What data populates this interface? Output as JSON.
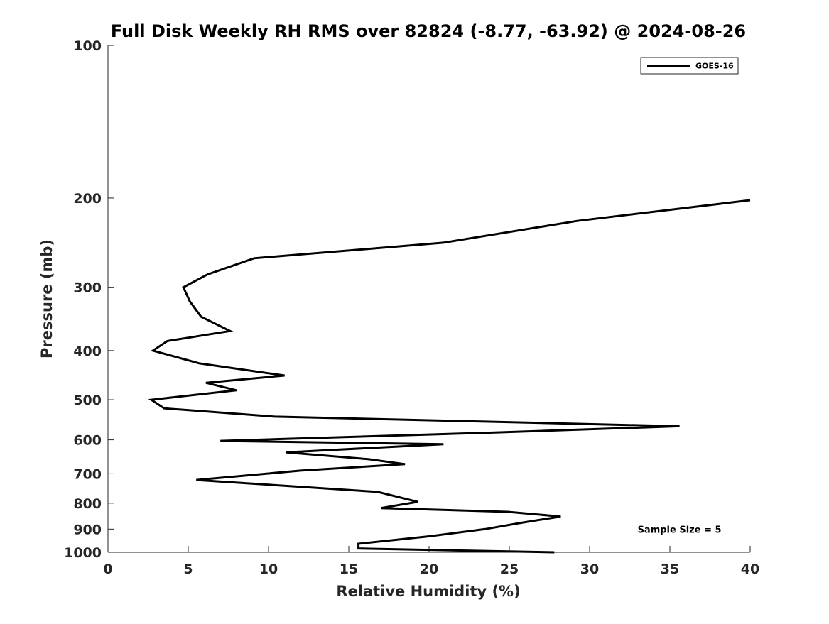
{
  "chart_data": {
    "type": "line",
    "title": "Full Disk Weekly RH RMS over 82824 (-8.77, -63.92) @ 2024-08-26",
    "xlabel": "Relative Humidity (%)",
    "ylabel": "Pressure (mb)",
    "xlim": [
      0,
      40
    ],
    "ylim": [
      100,
      1000
    ],
    "y_scale": "log",
    "y_reversed": true,
    "x_ticks": [
      0,
      5,
      10,
      15,
      20,
      25,
      30,
      35,
      40
    ],
    "y_ticks": [
      100,
      200,
      300,
      400,
      500,
      600,
      700,
      800,
      900,
      1000
    ],
    "grid": false,
    "legend_position": "top-right",
    "series": [
      {
        "name": "GOES-16",
        "color": "#000000",
        "x": [
          40.0,
          29.2,
          20.9,
          9.1,
          6.2,
          4.7,
          5.1,
          5.8,
          7.6,
          3.7,
          2.8,
          5.7,
          11.0,
          6.1,
          8.0,
          2.7,
          3.5,
          10.4,
          35.6,
          23.6,
          7.0,
          20.9,
          11.1,
          16.2,
          18.5,
          12.0,
          5.5,
          16.8,
          19.3,
          17.0,
          24.9,
          28.2,
          25.7,
          23.5,
          20.0,
          15.6,
          15.6,
          27.8
        ],
        "y": [
          202,
          222,
          245,
          263,
          283,
          300,
          320,
          343,
          366,
          383,
          400,
          424,
          448,
          463,
          479,
          500,
          520,
          540,
          564,
          581,
          603,
          612,
          635,
          655,
          670,
          690,
          720,
          760,
          795,
          818,
          832,
          850,
          875,
          900,
          930,
          962,
          983,
          1000
        ]
      }
    ],
    "annotations": [
      {
        "text": "Sample Size = 5",
        "x": 35.6,
        "y": 900
      }
    ]
  }
}
